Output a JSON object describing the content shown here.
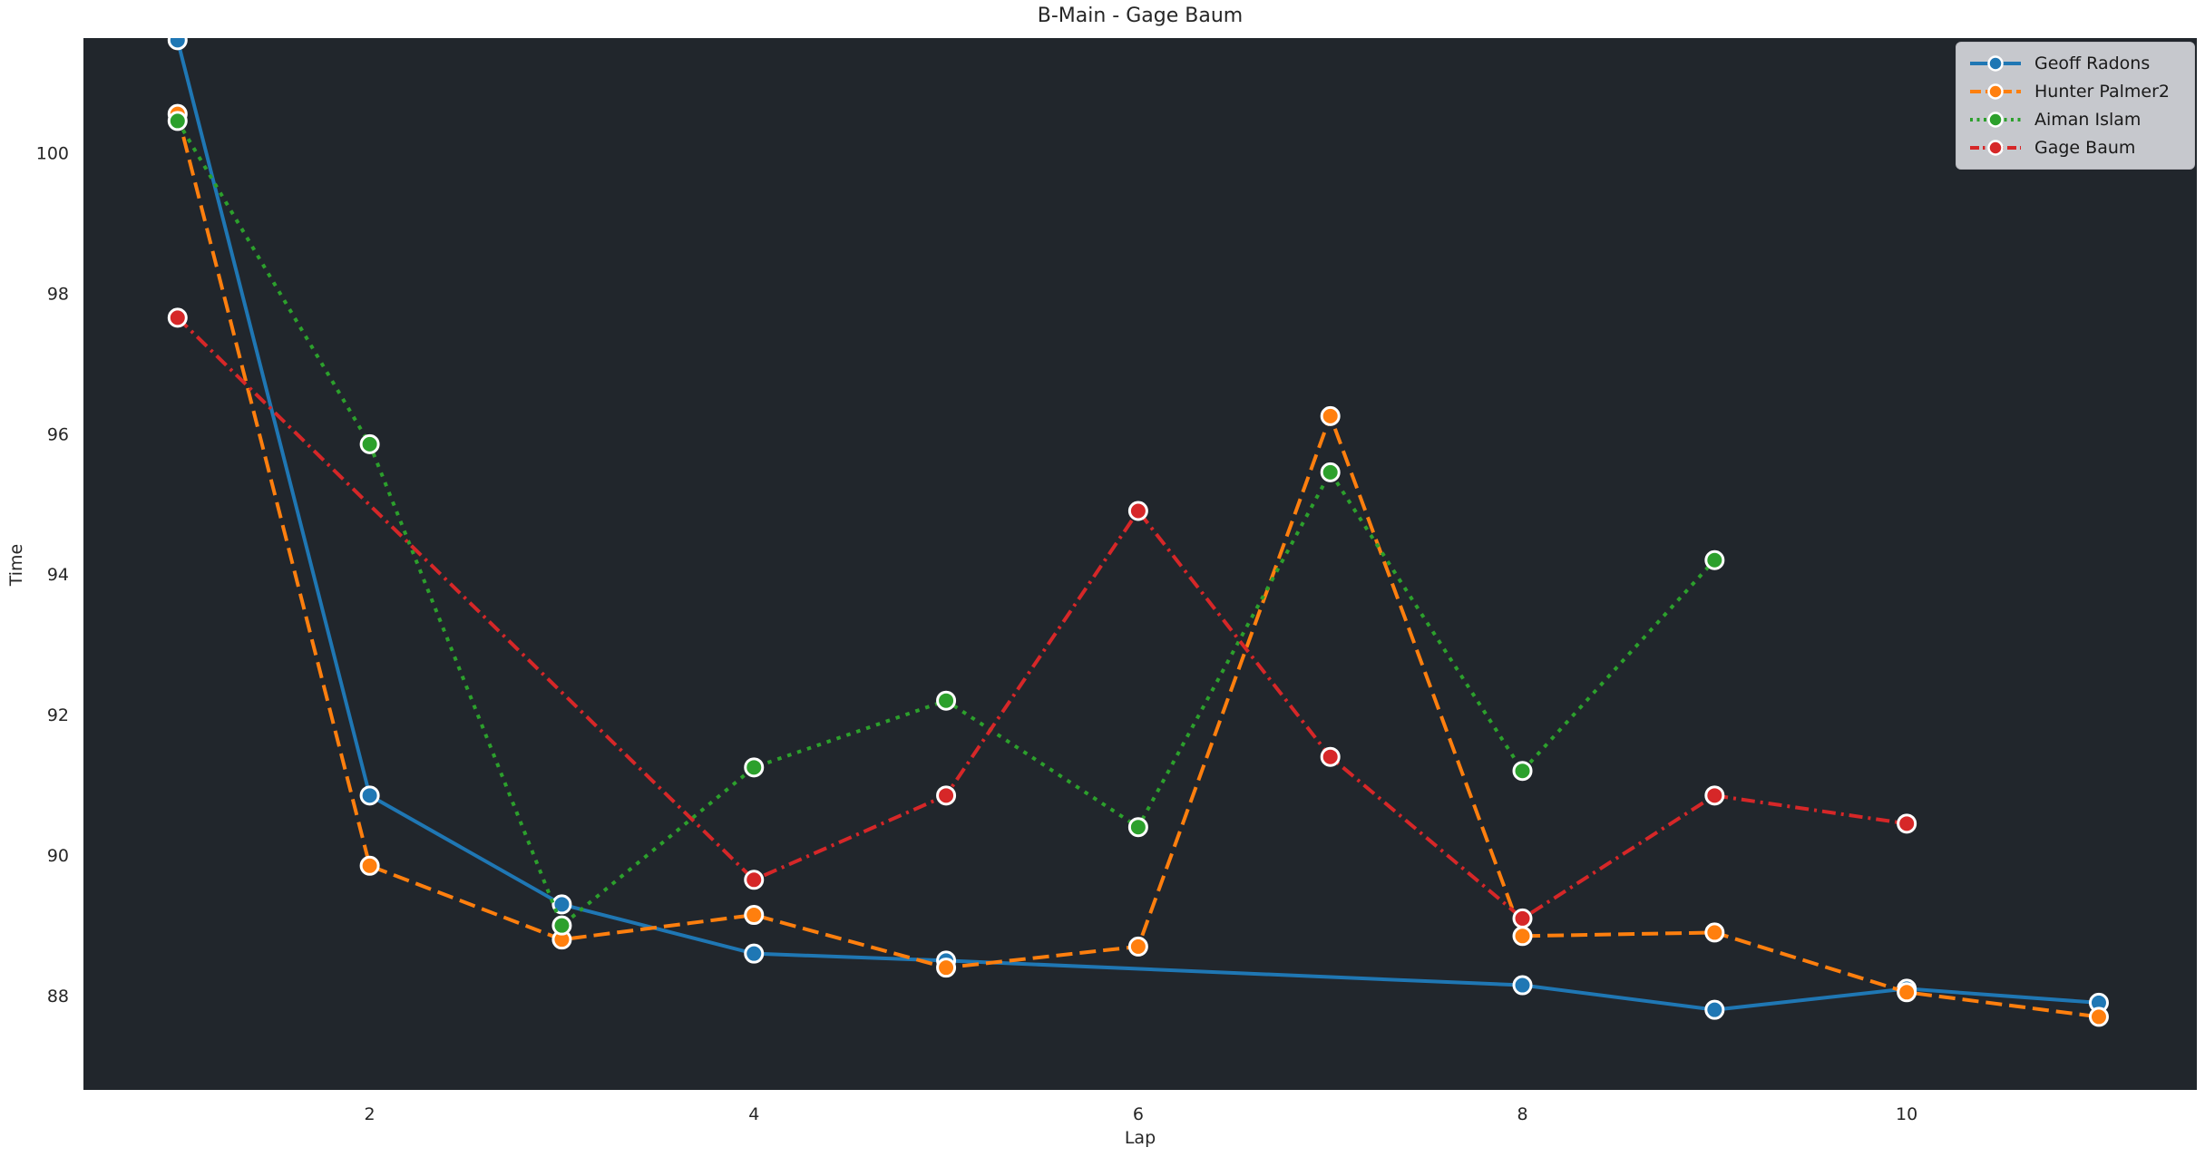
{
  "chart_data": {
    "type": "line",
    "title": "B-Main - Gage Baum",
    "xlabel": "Lap",
    "ylabel": "Time",
    "xlim": [
      0.51,
      11.51
    ],
    "ylim": [
      86.66,
      101.63
    ],
    "xticks": [
      2,
      4,
      6,
      8,
      10
    ],
    "yticks": [
      88,
      90,
      92,
      94,
      96,
      98,
      100
    ],
    "grid": false,
    "legend_position": "upper-right",
    "series": [
      {
        "name": "Geoff Radons",
        "color": "#1f77b4",
        "line_style": "solid",
        "x": [
          1,
          2,
          3,
          4,
          5,
          8,
          9,
          10,
          11
        ],
        "y": [
          101.6,
          90.85,
          89.3,
          88.6,
          88.5,
          88.15,
          87.8,
          88.1,
          87.9
        ]
      },
      {
        "name": "Hunter Palmer2",
        "color": "#ff7f0e",
        "line_style": "dashed",
        "x": [
          1,
          2,
          3,
          4,
          5,
          6,
          7,
          8,
          9,
          10,
          11
        ],
        "y": [
          100.55,
          89.85,
          88.8,
          89.15,
          88.4,
          88.7,
          96.25,
          88.85,
          88.9,
          88.05,
          87.7
        ]
      },
      {
        "name": "Aiman Islam",
        "color": "#2ca02c",
        "line_style": "dotted",
        "x": [
          1,
          2,
          3,
          4,
          5,
          6,
          7,
          8,
          9
        ],
        "y": [
          100.45,
          95.85,
          89.0,
          91.25,
          92.2,
          90.4,
          95.45,
          91.2,
          94.2
        ]
      },
      {
        "name": "Gage Baum",
        "color": "#d62728",
        "line_style": "dashdot",
        "x": [
          1,
          4,
          5,
          6,
          7,
          8,
          9,
          10
        ],
        "y": [
          97.65,
          89.65,
          90.85,
          94.9,
          91.4,
          89.1,
          90.85,
          90.45
        ]
      }
    ]
  },
  "colors": {
    "figure_bg": "#ffffff",
    "plot_bg": "#21262c",
    "text": "#262626",
    "legend_bg": "#d0d1d6",
    "marker_edge": "#ffffff"
  }
}
